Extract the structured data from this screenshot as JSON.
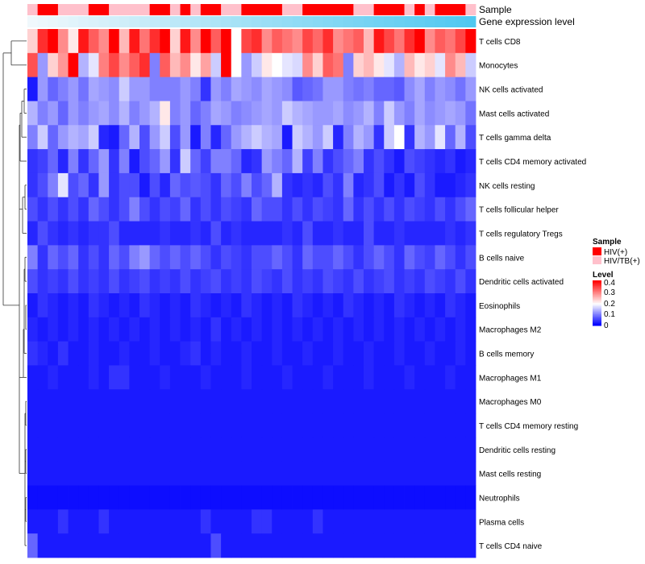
{
  "chart_data": {
    "type": "heatmap",
    "annotation_rows": [
      "Sample",
      "Gene expression level"
    ],
    "rows": [
      "T cells CD8",
      "Monocytes",
      "NK cells activated",
      "Mast cells activated",
      "T cells gamma delta",
      "T cells CD4 memory activated",
      "NK cells resting",
      "T cells follicular helper",
      "T cells regulatory  Tregs",
      "B cells naive",
      "Dendritic cells activated",
      "Eosinophils",
      "Macrophages M2",
      "B cells memory",
      "Macrophages M1",
      "Macrophages M0",
      "T cells CD4 memory resting",
      "Dendritic cells resting",
      "Mast cells resting",
      "Neutrophils",
      "Plasma cells",
      "T cells CD4 naive"
    ],
    "n_columns": 44,
    "sample_groups": [
      "HIV/TB",
      "HIV",
      "HIV",
      "HIV/TB",
      "HIV/TB",
      "HIV/TB",
      "HIV",
      "HIV",
      "HIV/TB",
      "HIV/TB",
      "HIV/TB",
      "HIV/TB",
      "HIV",
      "HIV",
      "HIV/TB",
      "HIV",
      "HIV/TB",
      "HIV",
      "HIV",
      "HIV/TB",
      "HIV/TB",
      "HIV",
      "HIV",
      "HIV",
      "HIV",
      "HIV/TB",
      "HIV/TB",
      "HIV",
      "HIV",
      "HIV",
      "HIV",
      "HIV",
      "HIV/TB",
      "HIV/TB",
      "HIV",
      "HIV",
      "HIV",
      "HIV/TB",
      "HIV",
      "HIV/TB",
      "HIV",
      "HIV",
      "HIV",
      "HIV/TB"
    ],
    "values": [
      [
        0.24,
        0.38,
        0.42,
        0.3,
        0.22,
        0.4,
        0.34,
        0.3,
        0.42,
        0.26,
        0.4,
        0.32,
        0.38,
        0.42,
        0.24,
        0.4,
        0.3,
        0.44,
        0.34,
        0.42,
        0.2,
        0.36,
        0.38,
        0.3,
        0.34,
        0.32,
        0.3,
        0.36,
        0.33,
        0.38,
        0.3,
        0.32,
        0.34,
        0.26,
        0.4,
        0.36,
        0.32,
        0.38,
        0.44,
        0.3,
        0.34,
        0.32,
        0.36,
        0.44
      ],
      [
        0.35,
        0.12,
        0.24,
        0.29,
        0.42,
        0.14,
        0.18,
        0.31,
        0.36,
        0.3,
        0.34,
        0.38,
        0.1,
        0.34,
        0.26,
        0.3,
        0.22,
        0.28,
        0.16,
        0.44,
        0.2,
        0.12,
        0.16,
        0.22,
        0.2,
        0.18,
        0.17,
        0.3,
        0.24,
        0.34,
        0.32,
        0.1,
        0.24,
        0.26,
        0.22,
        0.18,
        0.14,
        0.26,
        0.22,
        0.24,
        0.18,
        0.3,
        0.26,
        0.16
      ],
      [
        0.02,
        0.12,
        0.08,
        0.1,
        0.12,
        0.09,
        0.13,
        0.12,
        0.11,
        0.16,
        0.12,
        0.12,
        0.1,
        0.1,
        0.1,
        0.12,
        0.1,
        0.04,
        0.12,
        0.1,
        0.13,
        0.12,
        0.11,
        0.13,
        0.12,
        0.11,
        0.07,
        0.08,
        0.09,
        0.12,
        0.12,
        0.1,
        0.09,
        0.1,
        0.08,
        0.08,
        0.07,
        0.11,
        0.13,
        0.1,
        0.12,
        0.11,
        0.09,
        0.12
      ],
      [
        0.14,
        0.1,
        0.12,
        0.08,
        0.12,
        0.1,
        0.12,
        0.13,
        0.11,
        0.14,
        0.1,
        0.12,
        0.14,
        0.22,
        0.1,
        0.12,
        0.08,
        0.1,
        0.13,
        0.12,
        0.1,
        0.11,
        0.12,
        0.13,
        0.12,
        0.16,
        0.14,
        0.13,
        0.12,
        0.12,
        0.13,
        0.11,
        0.12,
        0.14,
        0.1,
        0.16,
        0.12,
        0.1,
        0.13,
        0.11,
        0.12,
        0.13,
        0.12,
        0.09
      ],
      [
        0.1,
        0.16,
        0.08,
        0.12,
        0.14,
        0.13,
        0.16,
        0.03,
        0.02,
        0.08,
        0.14,
        0.06,
        0.12,
        0.16,
        0.06,
        0.12,
        0.02,
        0.1,
        0.03,
        0.08,
        0.12,
        0.14,
        0.16,
        0.14,
        0.13,
        0.02,
        0.16,
        0.14,
        0.12,
        0.16,
        0.03,
        0.1,
        0.14,
        0.12,
        0.04,
        0.16,
        0.2,
        0.04,
        0.14,
        0.12,
        0.18,
        0.08,
        0.14,
        0.06
      ],
      [
        0.04,
        0.05,
        0.08,
        0.03,
        0.1,
        0.04,
        0.08,
        0.12,
        0.04,
        0.1,
        0.02,
        0.06,
        0.08,
        0.12,
        0.04,
        0.16,
        0.08,
        0.05,
        0.1,
        0.1,
        0.08,
        0.03,
        0.04,
        0.12,
        0.1,
        0.08,
        0.14,
        0.05,
        0.1,
        0.04,
        0.06,
        0.08,
        0.1,
        0.04,
        0.06,
        0.04,
        0.02,
        0.06,
        0.05,
        0.04,
        0.03,
        0.04,
        0.02,
        0.03
      ],
      [
        0.04,
        0.06,
        0.1,
        0.18,
        0.06,
        0.08,
        0.04,
        0.12,
        0.04,
        0.06,
        0.06,
        0.02,
        0.06,
        0.03,
        0.08,
        0.06,
        0.07,
        0.06,
        0.04,
        0.08,
        0.06,
        0.1,
        0.06,
        0.08,
        0.14,
        0.04,
        0.03,
        0.04,
        0.03,
        0.06,
        0.04,
        0.1,
        0.03,
        0.04,
        0.06,
        0.02,
        0.04,
        0.02,
        0.06,
        0.04,
        0.02,
        0.02,
        0.03,
        0.04
      ],
      [
        0.06,
        0.04,
        0.06,
        0.04,
        0.06,
        0.04,
        0.08,
        0.06,
        0.04,
        0.06,
        0.1,
        0.06,
        0.04,
        0.06,
        0.05,
        0.08,
        0.04,
        0.06,
        0.04,
        0.06,
        0.05,
        0.04,
        0.08,
        0.06,
        0.06,
        0.04,
        0.06,
        0.04,
        0.06,
        0.05,
        0.04,
        0.08,
        0.04,
        0.06,
        0.04,
        0.06,
        0.04,
        0.06,
        0.05,
        0.04,
        0.06,
        0.04,
        0.06,
        0.08
      ],
      [
        0.03,
        0.06,
        0.04,
        0.03,
        0.04,
        0.03,
        0.04,
        0.04,
        0.06,
        0.03,
        0.03,
        0.03,
        0.03,
        0.04,
        0.03,
        0.03,
        0.04,
        0.03,
        0.06,
        0.03,
        0.04,
        0.03,
        0.03,
        0.03,
        0.03,
        0.04,
        0.03,
        0.06,
        0.03,
        0.03,
        0.04,
        0.03,
        0.03,
        0.06,
        0.03,
        0.03,
        0.04,
        0.03,
        0.03,
        0.03,
        0.03,
        0.04,
        0.03,
        0.04
      ],
      [
        0.1,
        0.04,
        0.08,
        0.06,
        0.08,
        0.04,
        0.06,
        0.04,
        0.08,
        0.06,
        0.1,
        0.12,
        0.08,
        0.06,
        0.08,
        0.06,
        0.08,
        0.06,
        0.04,
        0.06,
        0.05,
        0.04,
        0.06,
        0.06,
        0.08,
        0.06,
        0.04,
        0.08,
        0.06,
        0.06,
        0.08,
        0.06,
        0.04,
        0.06,
        0.08,
        0.06,
        0.04,
        0.08,
        0.06,
        0.05,
        0.08,
        0.06,
        0.04,
        0.06
      ],
      [
        0.06,
        0.04,
        0.05,
        0.04,
        0.06,
        0.04,
        0.05,
        0.04,
        0.06,
        0.04,
        0.05,
        0.06,
        0.04,
        0.05,
        0.04,
        0.06,
        0.04,
        0.05,
        0.06,
        0.04,
        0.05,
        0.04,
        0.06,
        0.05,
        0.04,
        0.06,
        0.04,
        0.05,
        0.04,
        0.06,
        0.05,
        0.04,
        0.06,
        0.04,
        0.05,
        0.06,
        0.04,
        0.05,
        0.04,
        0.06,
        0.05,
        0.04,
        0.06,
        0.04
      ],
      [
        0.02,
        0.04,
        0.03,
        0.02,
        0.03,
        0.02,
        0.04,
        0.03,
        0.02,
        0.03,
        0.02,
        0.04,
        0.03,
        0.02,
        0.03,
        0.02,
        0.04,
        0.03,
        0.02,
        0.03,
        0.02,
        0.04,
        0.03,
        0.02,
        0.03,
        0.02,
        0.04,
        0.03,
        0.02,
        0.03,
        0.02,
        0.04,
        0.03,
        0.02,
        0.03,
        0.02,
        0.04,
        0.03,
        0.02,
        0.03,
        0.02,
        0.04,
        0.03,
        0.02
      ],
      [
        0.03,
        0.02,
        0.03,
        0.02,
        0.03,
        0.02,
        0.03,
        0.02,
        0.03,
        0.02,
        0.03,
        0.02,
        0.03,
        0.02,
        0.03,
        0.02,
        0.03,
        0.02,
        0.04,
        0.02,
        0.03,
        0.02,
        0.03,
        0.02,
        0.03,
        0.02,
        0.03,
        0.02,
        0.03,
        0.02,
        0.03,
        0.02,
        0.03,
        0.02,
        0.03,
        0.02,
        0.03,
        0.02,
        0.03,
        0.02,
        0.03,
        0.02,
        0.03,
        0.02
      ],
      [
        0.04,
        0.03,
        0.02,
        0.04,
        0.02,
        0.02,
        0.03,
        0.02,
        0.02,
        0.03,
        0.02,
        0.02,
        0.03,
        0.02,
        0.02,
        0.03,
        0.04,
        0.02,
        0.03,
        0.02,
        0.02,
        0.03,
        0.02,
        0.02,
        0.03,
        0.02,
        0.02,
        0.03,
        0.02,
        0.02,
        0.03,
        0.02,
        0.02,
        0.03,
        0.02,
        0.02,
        0.03,
        0.02,
        0.02,
        0.03,
        0.02,
        0.02,
        0.03,
        0.02
      ],
      [
        0.02,
        0.02,
        0.03,
        0.02,
        0.02,
        0.02,
        0.03,
        0.02,
        0.04,
        0.04,
        0.02,
        0.02,
        0.02,
        0.03,
        0.02,
        0.02,
        0.02,
        0.03,
        0.02,
        0.02,
        0.02,
        0.03,
        0.02,
        0.02,
        0.02,
        0.03,
        0.02,
        0.02,
        0.02,
        0.03,
        0.02,
        0.02,
        0.02,
        0.03,
        0.02,
        0.02,
        0.02,
        0.03,
        0.02,
        0.02,
        0.02,
        0.03,
        0.02,
        0.02
      ],
      [
        0.02,
        0.02,
        0.02,
        0.02,
        0.02,
        0.02,
        0.02,
        0.02,
        0.02,
        0.02,
        0.02,
        0.02,
        0.02,
        0.02,
        0.02,
        0.02,
        0.02,
        0.02,
        0.02,
        0.02,
        0.02,
        0.02,
        0.02,
        0.02,
        0.02,
        0.02,
        0.02,
        0.02,
        0.02,
        0.02,
        0.02,
        0.02,
        0.02,
        0.02,
        0.02,
        0.02,
        0.02,
        0.02,
        0.02,
        0.02,
        0.02,
        0.02,
        0.02,
        0.02
      ],
      [
        0.02,
        0.02,
        0.02,
        0.02,
        0.02,
        0.02,
        0.02,
        0.02,
        0.02,
        0.02,
        0.02,
        0.02,
        0.02,
        0.02,
        0.02,
        0.02,
        0.02,
        0.02,
        0.02,
        0.02,
        0.02,
        0.02,
        0.02,
        0.02,
        0.02,
        0.02,
        0.02,
        0.02,
        0.02,
        0.02,
        0.02,
        0.02,
        0.02,
        0.02,
        0.02,
        0.02,
        0.02,
        0.02,
        0.02,
        0.02,
        0.02,
        0.02,
        0.02,
        0.02
      ],
      [
        0.02,
        0.02,
        0.02,
        0.02,
        0.02,
        0.02,
        0.02,
        0.02,
        0.02,
        0.02,
        0.02,
        0.02,
        0.02,
        0.02,
        0.02,
        0.02,
        0.02,
        0.02,
        0.02,
        0.02,
        0.02,
        0.02,
        0.02,
        0.02,
        0.02,
        0.02,
        0.02,
        0.02,
        0.02,
        0.02,
        0.02,
        0.02,
        0.02,
        0.02,
        0.02,
        0.02,
        0.02,
        0.02,
        0.02,
        0.02,
        0.02,
        0.02,
        0.02,
        0.02
      ],
      [
        0.02,
        0.02,
        0.02,
        0.02,
        0.02,
        0.02,
        0.02,
        0.02,
        0.02,
        0.02,
        0.02,
        0.02,
        0.02,
        0.02,
        0.02,
        0.02,
        0.02,
        0.02,
        0.02,
        0.02,
        0.02,
        0.02,
        0.02,
        0.02,
        0.02,
        0.02,
        0.02,
        0.02,
        0.02,
        0.02,
        0.02,
        0.02,
        0.02,
        0.02,
        0.02,
        0.02,
        0.02,
        0.02,
        0.02,
        0.02,
        0.02,
        0.02,
        0.02,
        0.02
      ],
      [
        0.01,
        0.01,
        0.01,
        0.01,
        0.01,
        0.01,
        0.01,
        0.01,
        0.01,
        0.01,
        0.01,
        0.01,
        0.01,
        0.01,
        0.01,
        0.01,
        0.01,
        0.01,
        0.01,
        0.01,
        0.01,
        0.01,
        0.01,
        0.01,
        0.01,
        0.01,
        0.01,
        0.01,
        0.01,
        0.01,
        0.01,
        0.01,
        0.01,
        0.01,
        0.01,
        0.01,
        0.01,
        0.01,
        0.01,
        0.01,
        0.01,
        0.01,
        0.01,
        0.01
      ],
      [
        0.02,
        0.02,
        0.02,
        0.04,
        0.02,
        0.02,
        0.02,
        0.04,
        0.02,
        0.02,
        0.02,
        0.02,
        0.02,
        0.02,
        0.02,
        0.02,
        0.02,
        0.04,
        0.02,
        0.02,
        0.02,
        0.02,
        0.04,
        0.04,
        0.02,
        0.02,
        0.02,
        0.02,
        0.04,
        0.02,
        0.02,
        0.02,
        0.02,
        0.02,
        0.02,
        0.02,
        0.02,
        0.02,
        0.02,
        0.02,
        0.02,
        0.02,
        0.02,
        0.02
      ],
      [
        0.08,
        0.02,
        0.02,
        0.02,
        0.02,
        0.02,
        0.02,
        0.02,
        0.02,
        0.02,
        0.02,
        0.02,
        0.02,
        0.02,
        0.02,
        0.02,
        0.02,
        0.02,
        0.06,
        0.02,
        0.02,
        0.02,
        0.02,
        0.02,
        0.02,
        0.02,
        0.02,
        0.02,
        0.02,
        0.02,
        0.02,
        0.02,
        0.02,
        0.02,
        0.02,
        0.02,
        0.02,
        0.02,
        0.02,
        0.02,
        0.02,
        0.02,
        0.02,
        0.02
      ]
    ],
    "legend": {
      "sample_title": "Sample",
      "sample_entries": [
        {
          "label": "HIV(+)",
          "color": "#FF0000"
        },
        {
          "label": "HIV/TB(+)",
          "color": "#FFC0CB"
        }
      ],
      "level_title": "Level",
      "level_ticks": [
        "0.4",
        "0.3",
        "0.2",
        "0.1",
        "0"
      ],
      "level_range": [
        0,
        0.42
      ],
      "level_colors": [
        "#0000FF",
        "#FFFFFF",
        "#FF0000"
      ]
    }
  }
}
